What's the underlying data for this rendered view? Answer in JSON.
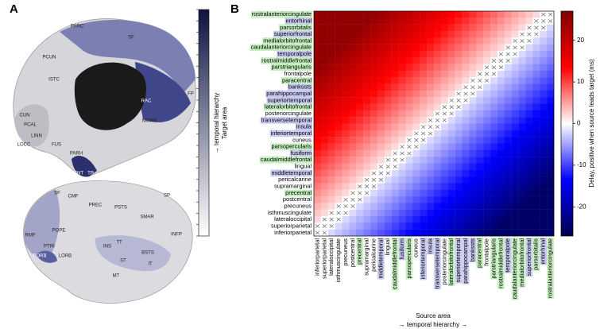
{
  "panel_a": {
    "label": "A",
    "bar_label_1": "→ temporal hierarchy",
    "bar_label_2": "Target area",
    "bar_colors": [
      "#0d1240",
      "#ffffff"
    ],
    "medial_regions": [
      "PARC",
      "PCUN",
      "SF",
      "CAC",
      "ISTC",
      "RAC",
      "CUN",
      "PCAL",
      "LINN",
      "LOCC",
      "FUS",
      "PARH",
      "ENT",
      "TP",
      "MORB",
      "FP"
    ],
    "lateral_regions": [
      "SF",
      "CMF",
      "SP",
      "PREC",
      "PSTS",
      "SMAR",
      "RMF",
      "POPE",
      "PTRI",
      "PORB",
      "LORB",
      "INS",
      "TT",
      "BSTS",
      "INFP",
      "ST",
      "MT",
      "IT"
    ]
  },
  "chart_data": {
    "type": "heatmap",
    "panel_label": "B",
    "x_label": "Source area",
    "x_label_2": "→ temporal hierarchy →",
    "colorbar_label": "Delay, positive when source leads target (ms)",
    "clim": [
      -27,
      27
    ],
    "cticks": [
      -20,
      -10,
      0,
      10,
      20
    ],
    "colormap": [
      "#00004d",
      "#0000ff",
      "#ffffff",
      "#ff0000",
      "#7f0000"
    ],
    "y_categories": [
      "rostralanteriorcingulate",
      "entorhinal",
      "parsorbitalis",
      "superiorfrontal",
      "medialorbitofrontal",
      "caudalanteriorcingulate",
      "temporalpole",
      "rostralmiddlefrontal",
      "parstriangularis",
      "frontalpole",
      "paracentral",
      "bankssts",
      "parahippocampal",
      "superiortemporal",
      "lateralorbitofrontal",
      "posteriorcingulate",
      "transversetemporal",
      "insula",
      "inferiortemporal",
      "cuneus",
      "parsopercularis",
      "fusiform",
      "caudalmiddlefrontal",
      "lingual",
      "middletemporal",
      "pericalcarine",
      "supramarginal",
      "precentral",
      "postcentral",
      "precuneus",
      "isthmuscingulate",
      "lateraloccipital",
      "superiorparietal",
      "inferiorparietal"
    ],
    "y_label_colors": [
      "#c6efc0",
      "#c9caf0",
      "#c6efc0",
      "#c9caf0",
      "#c6efc0",
      "#c6efc0",
      "#c9caf0",
      "#c6efc0",
      "#c6efc0",
      null,
      "#c6efc0",
      "#c9caf0",
      "#c9caf0",
      "#c9caf0",
      "#c6efc0",
      null,
      "#c9caf0",
      "#c9caf0",
      "#c9caf0",
      null,
      "#c6efc0",
      "#c9caf0",
      "#c6efc0",
      null,
      "#c9caf0",
      null,
      null,
      "#c6efc0",
      null,
      null,
      null,
      null,
      null,
      null
    ],
    "x_categories": [
      "inferiorparietal",
      "superiorparietal",
      "lateraloccipital",
      "isthmuscingulate",
      "precuneus",
      "postcentral",
      "precentral",
      "supramarginal",
      "pericalcarine",
      "middletemporal",
      "lingual",
      "caudalmiddlefrontal",
      "fusiform",
      "parsopercularis",
      "cuneus",
      "inferiortemporal",
      "insula",
      "transversetemporal",
      "posteriorcingulate",
      "lateralorbitofrontal",
      "superiortemporal",
      "parahippocampal",
      "bankssts",
      "paracentral",
      "frontalpole",
      "parstriangularis",
      "rostralmiddlefrontal",
      "temporalpole",
      "caudalanteriorcingulate",
      "medialorbitofrontal",
      "superiorfrontal",
      "parsorbitalis",
      "entorhinal",
      "rostralanteriorcingulate"
    ],
    "x_label_colors": [
      null,
      null,
      null,
      null,
      null,
      null,
      "#c6efc0",
      null,
      null,
      "#c9caf0",
      null,
      "#c6efc0",
      "#c9caf0",
      "#c6efc0",
      null,
      "#c9caf0",
      "#c9caf0",
      "#c9caf0",
      null,
      "#c6efc0",
      "#c9caf0",
      "#c9caf0",
      "#c9caf0",
      "#c6efc0",
      null,
      "#c6efc0",
      "#c6efc0",
      "#c9caf0",
      "#c6efc0",
      "#c6efc0",
      "#c9caf0",
      "#c6efc0",
      "#c9caf0",
      "#c6efc0"
    ],
    "values": [
      [
        25,
        25,
        25,
        25,
        25,
        25,
        25,
        25,
        25,
        24,
        23,
        22,
        21,
        20,
        19,
        18,
        17,
        16,
        15,
        14,
        13,
        12,
        11,
        10,
        9,
        8,
        7,
        6,
        5,
        4,
        3,
        2,
        null,
        null
      ],
      [
        25,
        25,
        25,
        25,
        25,
        25,
        25,
        25,
        24,
        23,
        22,
        21,
        20,
        19,
        18,
        17,
        16,
        15,
        14,
        13,
        12,
        11,
        10,
        9,
        8,
        7,
        6,
        5,
        4,
        3,
        2,
        null,
        null,
        null
      ],
      [
        25,
        25,
        25,
        25,
        25,
        25,
        25,
        24,
        23,
        22,
        21,
        20,
        19,
        18,
        17,
        16,
        15,
        14,
        13,
        12,
        11,
        10,
        9,
        8,
        7,
        6,
        5,
        4,
        3,
        2,
        null,
        null,
        null,
        -2
      ],
      [
        25,
        25,
        25,
        25,
        25,
        25,
        24,
        23,
        22,
        21,
        20,
        19,
        18,
        17,
        16,
        15,
        14,
        13,
        12,
        11,
        10,
        9,
        8,
        7,
        6,
        5,
        4,
        3,
        2,
        null,
        null,
        null,
        -2,
        -3
      ],
      [
        25,
        25,
        25,
        25,
        25,
        24,
        23,
        22,
        21,
        20,
        19,
        18,
        17,
        16,
        15,
        14,
        13,
        12,
        11,
        10,
        9,
        8,
        7,
        6,
        5,
        4,
        3,
        2,
        null,
        null,
        null,
        -2,
        -3,
        -4
      ],
      [
        25,
        25,
        25,
        25,
        24,
        23,
        22,
        21,
        20,
        19,
        18,
        17,
        16,
        15,
        14,
        13,
        12,
        11,
        10,
        9,
        8,
        7,
        6,
        5,
        4,
        3,
        2,
        null,
        null,
        null,
        -2,
        -3,
        -4,
        -5
      ],
      [
        25,
        25,
        25,
        24,
        23,
        22,
        21,
        20,
        19,
        18,
        17,
        16,
        15,
        14,
        13,
        12,
        11,
        10,
        9,
        8,
        7,
        6,
        5,
        4,
        3,
        2,
        null,
        null,
        null,
        -2,
        -3,
        -4,
        -5,
        -6
      ],
      [
        25,
        25,
        24,
        23,
        22,
        21,
        20,
        19,
        18,
        17,
        16,
        15,
        14,
        13,
        12,
        11,
        10,
        9,
        8,
        7,
        6,
        5,
        4,
        3,
        2,
        null,
        null,
        null,
        -2,
        -3,
        -4,
        -5,
        -6,
        -7
      ],
      [
        25,
        24,
        23,
        22,
        21,
        20,
        19,
        18,
        17,
        16,
        15,
        14,
        13,
        12,
        11,
        10,
        9,
        8,
        7,
        6,
        5,
        4,
        3,
        2,
        null,
        null,
        null,
        -2,
        -3,
        -4,
        -5,
        -6,
        -7,
        -8
      ],
      [
        24,
        23,
        22,
        21,
        20,
        19,
        18,
        17,
        16,
        15,
        14,
        13,
        12,
        11,
        10,
        9,
        8,
        7,
        6,
        5,
        4,
        3,
        2,
        null,
        null,
        null,
        -2,
        -3,
        -4,
        -5,
        -6,
        -7,
        -8,
        -9
      ],
      [
        23,
        22,
        21,
        20,
        19,
        18,
        17,
        16,
        15,
        14,
        13,
        12,
        11,
        10,
        9,
        8,
        7,
        6,
        5,
        4,
        3,
        2,
        null,
        null,
        null,
        -2,
        -3,
        -4,
        -5,
        -6,
        -7,
        -8,
        -9,
        -10
      ],
      [
        22,
        21,
        20,
        19,
        18,
        17,
        16,
        15,
        14,
        13,
        12,
        11,
        10,
        9,
        8,
        7,
        6,
        5,
        4,
        3,
        2,
        null,
        null,
        null,
        -2,
        -3,
        -4,
        -5,
        -6,
        -7,
        -8,
        -9,
        -10,
        -11
      ],
      [
        21,
        20,
        19,
        18,
        17,
        16,
        15,
        14,
        13,
        12,
        11,
        10,
        9,
        8,
        7,
        6,
        5,
        4,
        3,
        2,
        null,
        null,
        null,
        -2,
        -3,
        -4,
        -5,
        -6,
        -7,
        -8,
        -9,
        -10,
        -11,
        -12
      ],
      [
        20,
        19,
        18,
        17,
        16,
        15,
        14,
        13,
        12,
        11,
        10,
        9,
        8,
        7,
        6,
        5,
        4,
        3,
        2,
        null,
        null,
        null,
        -2,
        -3,
        -4,
        -5,
        -6,
        -7,
        -8,
        -9,
        -10,
        -11,
        -12,
        -13
      ],
      [
        19,
        18,
        17,
        16,
        15,
        14,
        13,
        12,
        11,
        10,
        9,
        8,
        7,
        6,
        5,
        4,
        3,
        2,
        null,
        null,
        null,
        -2,
        -3,
        -4,
        -5,
        -6,
        -7,
        -8,
        -9,
        -10,
        -11,
        -12,
        -13,
        -14
      ],
      [
        18,
        17,
        16,
        15,
        14,
        13,
        12,
        11,
        10,
        9,
        8,
        7,
        6,
        5,
        4,
        3,
        2,
        null,
        null,
        null,
        -2,
        -3,
        -4,
        -5,
        -6,
        -7,
        -8,
        -9,
        -10,
        -11,
        -12,
        -13,
        -14,
        -15
      ],
      [
        17,
        16,
        15,
        14,
        13,
        12,
        11,
        10,
        9,
        8,
        7,
        6,
        5,
        4,
        3,
        2,
        null,
        null,
        null,
        -2,
        -3,
        -4,
        -5,
        -6,
        -7,
        -8,
        -9,
        -10,
        -11,
        -12,
        -13,
        -14,
        -15,
        -16
      ],
      [
        16,
        15,
        14,
        13,
        12,
        11,
        10,
        9,
        8,
        7,
        6,
        5,
        4,
        3,
        2,
        null,
        null,
        null,
        -2,
        -3,
        -4,
        -5,
        -6,
        -7,
        -8,
        -9,
        -10,
        -11,
        -12,
        -13,
        -14,
        -15,
        -16,
        -17
      ],
      [
        15,
        14,
        13,
        12,
        11,
        10,
        9,
        8,
        7,
        6,
        5,
        4,
        3,
        2,
        null,
        null,
        null,
        -2,
        -3,
        -4,
        -5,
        -6,
        -7,
        -8,
        -9,
        -10,
        -11,
        -12,
        -13,
        -14,
        -15,
        -16,
        -17,
        -18
      ],
      [
        14,
        13,
        12,
        11,
        10,
        9,
        8,
        7,
        6,
        5,
        4,
        3,
        2,
        null,
        null,
        null,
        -2,
        -3,
        -4,
        -5,
        -6,
        -7,
        -8,
        -9,
        -10,
        -11,
        -12,
        -13,
        -14,
        -15,
        -16,
        -17,
        -18,
        -19
      ],
      [
        13,
        12,
        11,
        10,
        9,
        8,
        7,
        6,
        5,
        4,
        3,
        2,
        null,
        null,
        null,
        -2,
        -3,
        -4,
        -5,
        -6,
        -7,
        -8,
        -9,
        -10,
        -11,
        -12,
        -13,
        -14,
        -15,
        -16,
        -17,
        -18,
        -19,
        -20
      ],
      [
        12,
        11,
        10,
        9,
        8,
        7,
        6,
        5,
        4,
        3,
        2,
        null,
        null,
        null,
        -2,
        -3,
        -4,
        -5,
        -6,
        -7,
        -8,
        -9,
        -10,
        -11,
        -12,
        -13,
        -14,
        -15,
        -16,
        -17,
        -18,
        -19,
        -20,
        -21
      ],
      [
        11,
        10,
        9,
        8,
        7,
        6,
        5,
        4,
        3,
        2,
        null,
        null,
        null,
        -2,
        -3,
        -4,
        -5,
        -6,
        -7,
        -8,
        -9,
        -10,
        -11,
        -12,
        -13,
        -14,
        -15,
        -16,
        -17,
        -18,
        -19,
        -20,
        -21,
        -22
      ],
      [
        10,
        9,
        8,
        7,
        6,
        5,
        4,
        3,
        2,
        null,
        null,
        null,
        -2,
        -3,
        -4,
        -5,
        -6,
        -7,
        -8,
        -9,
        -10,
        -11,
        -12,
        -13,
        -14,
        -15,
        -16,
        -17,
        -18,
        -19,
        -20,
        -21,
        -22,
        -23
      ],
      [
        9,
        8,
        7,
        6,
        5,
        4,
        3,
        2,
        null,
        null,
        null,
        -2,
        -3,
        -4,
        -5,
        -6,
        -7,
        -8,
        -9,
        -10,
        -11,
        -12,
        -13,
        -14,
        -15,
        -16,
        -17,
        -18,
        -19,
        -20,
        -21,
        -22,
        -23,
        -24
      ],
      [
        8,
        7,
        6,
        5,
        4,
        3,
        2,
        null,
        null,
        null,
        -2,
        -3,
        -4,
        -5,
        -6,
        -7,
        -8,
        -9,
        -10,
        -11,
        -12,
        -13,
        -14,
        -15,
        -16,
        -17,
        -18,
        -19,
        -20,
        -21,
        -22,
        -23,
        -24,
        -25
      ],
      [
        7,
        6,
        5,
        4,
        3,
        2,
        null,
        null,
        null,
        -2,
        -3,
        -4,
        -5,
        -6,
        -7,
        -8,
        -9,
        -10,
        -11,
        -12,
        -13,
        -14,
        -15,
        -16,
        -17,
        -18,
        -19,
        -20,
        -21,
        -22,
        -23,
        -24,
        -25,
        -25
      ],
      [
        6,
        5,
        4,
        3,
        2,
        null,
        null,
        null,
        -2,
        -3,
        -4,
        -5,
        -6,
        -7,
        -8,
        -9,
        -10,
        -11,
        -12,
        -13,
        -14,
        -15,
        -16,
        -17,
        -18,
        -19,
        -20,
        -21,
        -22,
        -23,
        -24,
        -25,
        -25,
        -25
      ],
      [
        5,
        4,
        3,
        2,
        null,
        null,
        null,
        -2,
        -3,
        -4,
        -5,
        -6,
        -7,
        -8,
        -9,
        -10,
        -11,
        -12,
        -13,
        -14,
        -15,
        -16,
        -17,
        -18,
        -19,
        -20,
        -21,
        -22,
        -23,
        -24,
        -25,
        -25,
        -25,
        -25
      ],
      [
        4,
        3,
        2,
        null,
        null,
        null,
        -2,
        -3,
        -4,
        -5,
        -6,
        -7,
        -8,
        -9,
        -10,
        -11,
        -12,
        -13,
        -14,
        -15,
        -16,
        -17,
        -18,
        -19,
        -20,
        -21,
        -22,
        -23,
        -24,
        -25,
        -25,
        -25,
        -25,
        -25
      ],
      [
        3,
        2,
        null,
        null,
        null,
        -2,
        -3,
        -4,
        -5,
        -6,
        -7,
        -8,
        -9,
        -10,
        -11,
        -12,
        -13,
        -14,
        -15,
        -16,
        -17,
        -18,
        -19,
        -20,
        -21,
        -22,
        -23,
        -24,
        -25,
        -25,
        -25,
        -25,
        -25,
        -25
      ],
      [
        2,
        null,
        null,
        null,
        -2,
        -3,
        -4,
        -5,
        -6,
        -7,
        -8,
        -9,
        -10,
        -11,
        -12,
        -13,
        -14,
        -15,
        -16,
        -17,
        -18,
        -19,
        -20,
        -21,
        -22,
        -23,
        -24,
        -25,
        -25,
        -25,
        -25,
        -25,
        -25,
        -25
      ],
      [
        null,
        null,
        null,
        -2,
        -3,
        -4,
        -5,
        -6,
        -7,
        -8,
        -9,
        -10,
        -11,
        -12,
        -13,
        -14,
        -15,
        -16,
        -17,
        -18,
        -19,
        -20,
        -21,
        -22,
        -23,
        -24,
        -25,
        -25,
        -25,
        -25,
        -25,
        -25,
        -25,
        -25
      ],
      [
        null,
        null,
        -2,
        -3,
        -4,
        -5,
        -6,
        -7,
        -8,
        -9,
        -10,
        -11,
        -12,
        -13,
        -14,
        -15,
        -16,
        -17,
        -18,
        -19,
        -20,
        -21,
        -22,
        -23,
        -24,
        -25,
        -25,
        -25,
        -25,
        -25,
        -25,
        -25,
        -25,
        -25
      ]
    ]
  }
}
